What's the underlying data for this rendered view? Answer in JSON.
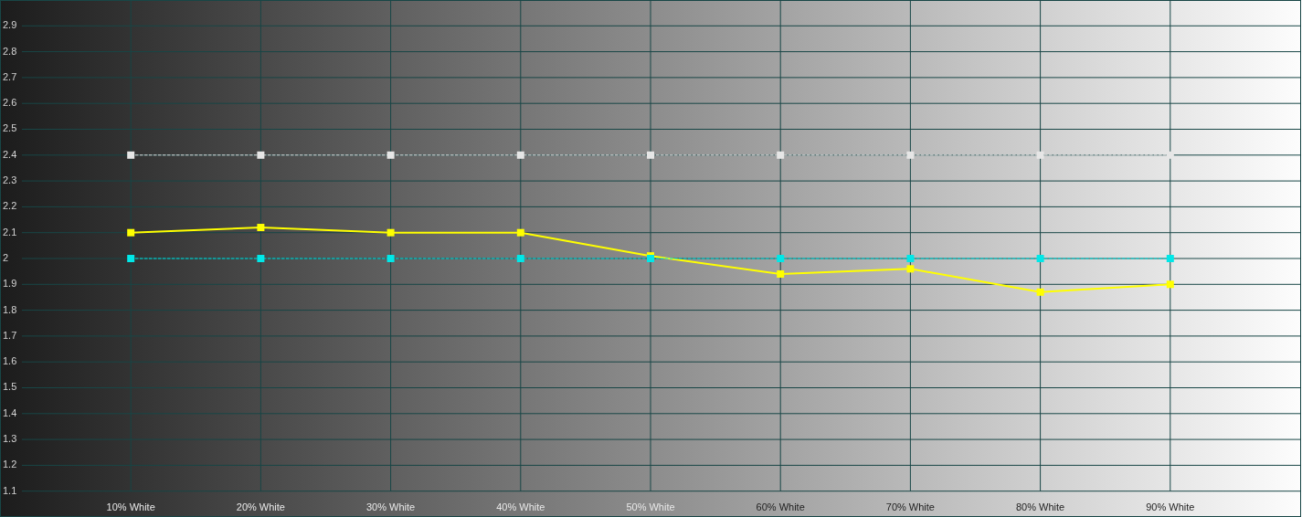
{
  "chart_data": {
    "type": "line",
    "x": [
      10,
      20,
      30,
      40,
      50,
      60,
      70,
      80,
      90
    ],
    "xlim": [
      0,
      100
    ],
    "xticks": [
      {
        "value": 10,
        "label": "10% White"
      },
      {
        "value": 20,
        "label": "20% White"
      },
      {
        "value": 30,
        "label": "30% White"
      },
      {
        "value": 40,
        "label": "40% White"
      },
      {
        "value": 50,
        "label": "50% White"
      },
      {
        "value": 60,
        "label": "60% White"
      },
      {
        "value": 70,
        "label": "70% White"
      },
      {
        "value": 80,
        "label": "80% White"
      },
      {
        "value": 90,
        "label": "90% White"
      }
    ],
    "ylim": [
      1,
      3
    ],
    "yticks": [
      1.1,
      1.2,
      1.3,
      1.4,
      1.5,
      1.6,
      1.7,
      1.8,
      1.9,
      2,
      2.1,
      2.2,
      2.3,
      2.4,
      2.5,
      2.6,
      2.7,
      2.8,
      2.9
    ],
    "grid": true,
    "marker": "square",
    "series": [
      {
        "color": "#e6e6e6",
        "line_style": "dashed",
        "values": [
          2.4,
          2.4,
          2.4,
          2.4,
          2.4,
          2.4,
          2.4,
          2.4,
          2.4
        ]
      },
      {
        "color": "#ffff00",
        "line_style": "solid",
        "values": [
          2.1,
          2.12,
          2.1,
          2.1,
          2.01,
          1.94,
          1.96,
          1.87,
          1.9
        ]
      },
      {
        "color": "#00e8e8",
        "line_style": "dashed",
        "values": [
          2,
          2,
          2,
          2,
          2,
          2,
          2,
          2,
          2
        ]
      }
    ]
  }
}
